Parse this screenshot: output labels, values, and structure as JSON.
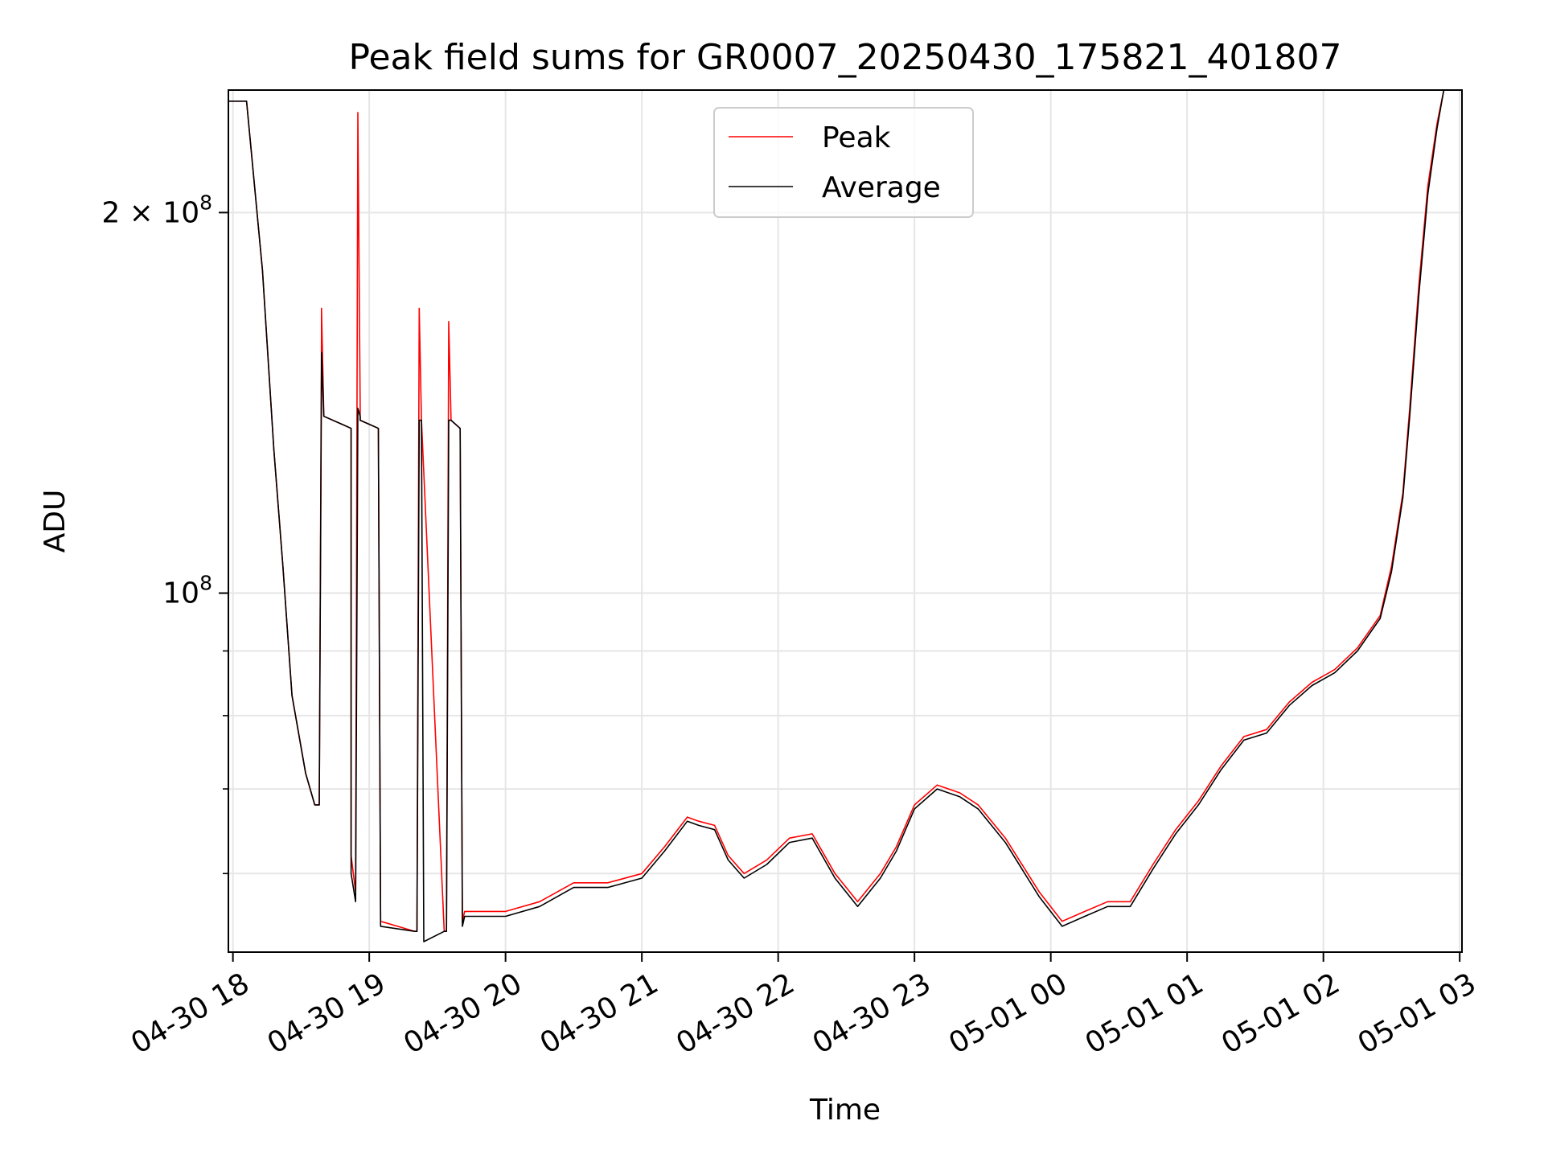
{
  "chart_data": {
    "type": "line",
    "title": "Peak field sums for GR0007_20250430_175821_401807",
    "xlabel": "Time",
    "ylabel": "ADU",
    "y_scale": "log",
    "ylim": [
      52000000,
      250000000
    ],
    "xlim": [
      "2025-04-30 17:58",
      "2025-05-01 03:01"
    ],
    "grid": true,
    "legend_position": "upper center",
    "x_tick_labels": [
      "04-30 18",
      "04-30 19",
      "04-30 20",
      "04-30 21",
      "04-30 22",
      "04-30 23",
      "05-01 00",
      "05-01 01",
      "05-01 02",
      "05-01 03"
    ],
    "x_ticks": [
      "2025-04-30 18:00",
      "2025-04-30 19:00",
      "2025-04-30 20:00",
      "2025-04-30 21:00",
      "2025-04-30 22:00",
      "2025-04-30 23:00",
      "2025-05-01 00:00",
      "2025-05-01 01:00",
      "2025-05-01 02:00",
      "2025-05-01 03:00"
    ],
    "y_tick_labels": [
      {
        "value": 100000000,
        "base": "10",
        "exp": "8",
        "prefix": ""
      },
      {
        "value": 200000000,
        "base": "10",
        "exp": "8",
        "prefix": "2 × "
      }
    ],
    "y_minor_ticks": [
      60000000,
      70000000,
      80000000,
      90000000
    ],
    "series": [
      {
        "name": "Peak",
        "color": "#ff0000",
        "x": [
          "2025-04-30 17:58",
          "2025-04-30 18:06",
          "2025-04-30 18:13",
          "2025-04-30 18:18",
          "2025-04-30 18:22",
          "2025-04-30 18:26",
          "2025-04-30 18:32",
          "2025-04-30 18:36",
          "2025-04-30 18:38",
          "2025-04-30 18:39",
          "2025-04-30 18:39",
          "2025-04-30 18:40",
          "2025-04-30 18:48",
          "2025-04-30 18:52",
          "2025-04-30 18:52",
          "2025-04-30 18:54",
          "2025-04-30 18:55",
          "2025-04-30 18:56",
          "2025-04-30 18:56",
          "2025-04-30 19:00",
          "2025-04-30 19:04",
          "2025-04-30 19:05",
          "2025-04-30 19:20",
          "2025-04-30 19:21",
          "2025-04-30 19:22",
          "2025-04-30 19:23",
          "2025-04-30 19:33",
          "2025-04-30 19:34",
          "2025-04-30 19:35",
          "2025-04-30 19:36",
          "2025-04-30 19:40",
          "2025-04-30 19:41",
          "2025-04-30 19:42",
          "2025-04-30 20:00",
          "2025-04-30 20:15",
          "2025-04-30 20:30",
          "2025-04-30 20:45",
          "2025-04-30 21:00",
          "2025-04-30 21:10",
          "2025-04-30 21:20",
          "2025-04-30 21:25",
          "2025-04-30 21:32",
          "2025-04-30 21:38",
          "2025-04-30 21:45",
          "2025-04-30 21:55",
          "2025-04-30 22:05",
          "2025-04-30 22:15",
          "2025-04-30 22:25",
          "2025-04-30 22:35",
          "2025-04-30 22:45",
          "2025-04-30 22:52",
          "2025-04-30 23:00",
          "2025-04-30 23:10",
          "2025-04-30 23:20",
          "2025-04-30 23:28",
          "2025-04-30 23:40",
          "2025-04-30 23:55",
          "2025-05-01 00:05",
          "2025-05-01 00:15",
          "2025-05-01 00:25",
          "2025-05-01 00:35",
          "2025-05-01 00:45",
          "2025-05-01 00:55",
          "2025-05-01 01:05",
          "2025-05-01 01:15",
          "2025-05-01 01:25",
          "2025-05-01 01:35",
          "2025-05-01 01:45",
          "2025-05-01 01:55",
          "2025-05-01 02:05",
          "2025-05-01 02:15",
          "2025-05-01 02:25",
          "2025-05-01 02:30",
          "2025-05-01 02:35",
          "2025-05-01 02:38",
          "2025-05-01 02:42",
          "2025-05-01 02:46",
          "2025-05-01 02:50",
          "2025-05-01 02:53",
          "2025-05-01 02:55"
        ],
        "values": [
          245000000,
          245000000,
          180000000,
          130000000,
          105000000,
          83000000,
          72000000,
          68000000,
          68000000,
          160000000,
          168000000,
          138000000,
          136000000,
          135000000,
          62000000,
          58000000,
          240000000,
          140000000,
          137000000,
          136000000,
          135000000,
          55000000,
          54000000,
          54000000,
          168000000,
          137000000,
          54000000,
          54000000,
          164000000,
          137000000,
          135000000,
          55000000,
          56000000,
          56000000,
          57000000,
          59000000,
          59000000,
          60000000,
          63000000,
          66500000,
          66000000,
          65500000,
          62000000,
          60000000,
          61500000,
          64000000,
          64500000,
          60000000,
          57000000,
          60000000,
          63000000,
          68000000,
          70500000,
          69500000,
          68000000,
          64000000,
          58000000,
          55000000,
          56000000,
          57000000,
          57000000,
          61000000,
          65000000,
          68500000,
          73000000,
          77000000,
          78000000,
          82000000,
          85000000,
          87000000,
          90500000,
          96000000,
          105000000,
          120000000,
          140000000,
          175000000,
          210000000,
          235000000,
          250000000,
          250000000
        ]
      },
      {
        "name": "Average",
        "color": "#000000",
        "x": [
          "2025-04-30 17:58",
          "2025-04-30 18:06",
          "2025-04-30 18:13",
          "2025-04-30 18:18",
          "2025-04-30 18:22",
          "2025-04-30 18:26",
          "2025-04-30 18:32",
          "2025-04-30 18:36",
          "2025-04-30 18:38",
          "2025-04-30 18:39",
          "2025-04-30 18:39",
          "2025-04-30 18:40",
          "2025-04-30 18:48",
          "2025-04-30 18:52",
          "2025-04-30 18:52",
          "2025-04-30 18:54",
          "2025-04-30 18:55",
          "2025-04-30 18:56",
          "2025-04-30 18:56",
          "2025-04-30 19:00",
          "2025-04-30 19:04",
          "2025-04-30 19:05",
          "2025-04-30 19:20",
          "2025-04-30 19:21",
          "2025-04-30 19:22",
          "2025-04-30 19:23",
          "2025-04-30 19:24",
          "2025-04-30 19:33",
          "2025-04-30 19:34",
          "2025-04-30 19:35",
          "2025-04-30 19:36",
          "2025-04-30 19:40",
          "2025-04-30 19:41",
          "2025-04-30 19:42",
          "2025-04-30 20:00",
          "2025-04-30 20:15",
          "2025-04-30 20:30",
          "2025-04-30 20:45",
          "2025-04-30 21:00",
          "2025-04-30 21:10",
          "2025-04-30 21:20",
          "2025-04-30 21:25",
          "2025-04-30 21:32",
          "2025-04-30 21:38",
          "2025-04-30 21:45",
          "2025-04-30 21:55",
          "2025-04-30 22:05",
          "2025-04-30 22:15",
          "2025-04-30 22:25",
          "2025-04-30 22:35",
          "2025-04-30 22:45",
          "2025-04-30 22:52",
          "2025-04-30 23:00",
          "2025-04-30 23:10",
          "2025-04-30 23:20",
          "2025-04-30 23:28",
          "2025-04-30 23:40",
          "2025-04-30 23:55",
          "2025-05-01 00:05",
          "2025-05-01 00:15",
          "2025-05-01 00:25",
          "2025-05-01 00:35",
          "2025-05-01 00:45",
          "2025-05-01 00:55",
          "2025-05-01 01:05",
          "2025-05-01 01:15",
          "2025-05-01 01:25",
          "2025-05-01 01:35",
          "2025-05-01 01:45",
          "2025-05-01 01:55",
          "2025-05-01 02:05",
          "2025-05-01 02:15",
          "2025-05-01 02:25",
          "2025-05-01 02:30",
          "2025-05-01 02:35",
          "2025-05-01 02:38",
          "2025-05-01 02:42",
          "2025-05-01 02:46",
          "2025-05-01 02:50",
          "2025-05-01 02:53",
          "2025-05-01 02:55"
        ],
        "values": [
          245000000,
          245000000,
          180000000,
          130000000,
          105000000,
          83000000,
          72000000,
          68000000,
          68000000,
          150000000,
          155000000,
          138000000,
          136000000,
          135000000,
          60000000,
          57000000,
          140000000,
          138000000,
          137000000,
          136000000,
          135000000,
          54500000,
          54000000,
          54000000,
          137000000,
          137000000,
          53000000,
          54000000,
          54000000,
          137000000,
          137000000,
          135000000,
          54500000,
          55500000,
          55500000,
          56500000,
          58500000,
          58500000,
          59500000,
          62500000,
          66000000,
          65500000,
          65000000,
          61500000,
          59500000,
          61000000,
          63500000,
          64000000,
          59500000,
          56500000,
          59500000,
          62500000,
          67500000,
          70000000,
          69000000,
          67500000,
          63500000,
          57500000,
          54500000,
          55500000,
          56500000,
          56500000,
          60500000,
          64500000,
          68000000,
          72500000,
          76500000,
          77500000,
          81500000,
          84500000,
          86500000,
          90000000,
          95500000,
          104000000,
          119000000,
          138000000,
          172000000,
          207000000,
          233000000,
          250000000,
          250000000
        ]
      }
    ]
  }
}
